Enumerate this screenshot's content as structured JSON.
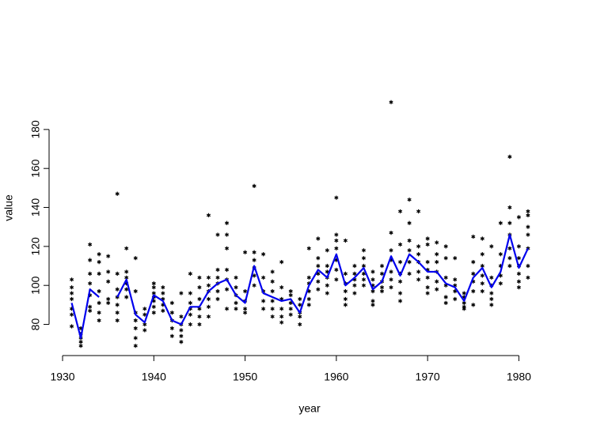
{
  "chart_data": {
    "type": "scatter",
    "x_label": "year",
    "y_label": "value",
    "xlim": [
      1929,
      1983
    ],
    "ylim": [
      64,
      199
    ],
    "xticks": [
      1930,
      1940,
      1950,
      1960,
      1970,
      1980
    ],
    "yticks": [
      80,
      100,
      120,
      140,
      160,
      180
    ],
    "point_color": "#000000",
    "points": [
      {
        "x": 1931,
        "values": [
          103,
          99,
          96,
          93,
          88,
          85,
          79
        ]
      },
      {
        "x": 1932,
        "values": [
          78,
          75,
          73,
          71,
          69
        ]
      },
      {
        "x": 1933,
        "values": [
          121,
          113,
          106,
          101,
          95,
          89,
          87
        ]
      },
      {
        "x": 1934,
        "values": [
          116,
          112,
          106,
          97,
          91,
          86,
          82
        ]
      },
      {
        "x": 1935,
        "values": [
          115,
          107,
          102,
          93,
          91
        ]
      },
      {
        "x": 1936,
        "values": [
          147,
          106,
          98,
          94,
          90,
          86,
          82
        ]
      },
      {
        "x": 1937,
        "values": [
          119,
          107,
          104,
          101,
          98,
          94
        ]
      },
      {
        "x": 1938,
        "values": [
          114,
          97,
          86,
          82,
          78,
          73,
          69
        ]
      },
      {
        "x": 1939,
        "values": [
          88,
          85,
          80,
          77
        ]
      },
      {
        "x": 1940,
        "values": [
          101,
          99,
          96,
          94,
          92,
          89,
          86
        ]
      },
      {
        "x": 1941,
        "values": [
          99,
          96,
          93,
          90,
          87
        ]
      },
      {
        "x": 1942,
        "values": [
          91,
          86,
          82,
          78,
          74
        ]
      },
      {
        "x": 1943,
        "values": [
          96,
          84,
          80,
          77,
          74,
          71
        ]
      },
      {
        "x": 1944,
        "values": [
          106,
          96,
          91,
          88,
          85,
          80
        ]
      },
      {
        "x": 1945,
        "values": [
          104,
          99,
          93,
          88,
          84,
          80
        ]
      },
      {
        "x": 1946,
        "values": [
          136,
          104,
          100,
          97,
          93,
          89,
          84
        ]
      },
      {
        "x": 1947,
        "values": [
          126,
          108,
          104,
          101,
          97,
          93
        ]
      },
      {
        "x": 1948,
        "values": [
          132,
          126,
          119,
          108,
          103,
          98,
          88
        ]
      },
      {
        "x": 1949,
        "values": [
          104,
          99,
          95,
          91,
          88
        ]
      },
      {
        "x": 1950,
        "values": [
          117,
          97,
          92,
          88,
          86
        ]
      },
      {
        "x": 1951,
        "values": [
          151,
          117,
          113,
          109,
          105,
          100
        ]
      },
      {
        "x": 1952,
        "values": [
          116,
          104,
          97,
          92,
          88
        ]
      },
      {
        "x": 1953,
        "values": [
          107,
          102,
          97,
          92,
          88,
          84
        ]
      },
      {
        "x": 1954,
        "values": [
          112,
          99,
          93,
          88,
          84,
          81
        ]
      },
      {
        "x": 1955,
        "values": [
          97,
          95,
          91,
          88,
          85
        ]
      },
      {
        "x": 1956,
        "values": [
          93,
          90,
          86,
          84,
          80
        ]
      },
      {
        "x": 1957,
        "values": [
          119,
          104,
          101,
          97,
          93,
          90
        ]
      },
      {
        "x": 1958,
        "values": [
          124,
          114,
          110,
          106,
          102,
          98
        ]
      },
      {
        "x": 1959,
        "values": [
          118,
          110,
          107,
          104,
          100,
          96
        ]
      },
      {
        "x": 1960,
        "values": [
          145,
          126,
          123,
          119,
          113,
          108,
          103
        ]
      },
      {
        "x": 1961,
        "values": [
          123,
          106,
          101,
          97,
          93,
          90
        ]
      },
      {
        "x": 1962,
        "values": [
          110,
          106,
          103,
          100,
          96
        ]
      },
      {
        "x": 1963,
        "values": [
          118,
          114,
          110,
          106,
          103,
          100
        ]
      },
      {
        "x": 1964,
        "values": [
          107,
          103,
          100,
          97,
          92,
          90
        ]
      },
      {
        "x": 1965,
        "values": [
          110,
          106,
          102,
          99,
          97
        ]
      },
      {
        "x": 1966,
        "values": [
          194,
          127,
          118,
          113,
          107,
          103,
          99
        ]
      },
      {
        "x": 1967,
        "values": [
          138,
          121,
          112,
          106,
          102,
          96,
          92
        ]
      },
      {
        "x": 1968,
        "values": [
          144,
          132,
          123,
          118,
          112,
          106
        ]
      },
      {
        "x": 1969,
        "values": [
          138,
          120,
          116,
          112,
          107,
          103
        ]
      },
      {
        "x": 1970,
        "values": [
          124,
          121,
          112,
          108,
          104,
          99,
          96
        ]
      },
      {
        "x": 1971,
        "values": [
          122,
          116,
          112,
          107,
          102,
          98
        ]
      },
      {
        "x": 1972,
        "values": [
          120,
          114,
          104,
          100,
          94,
          91
        ]
      },
      {
        "x": 1973,
        "values": [
          114,
          103,
          100,
          97,
          93
        ]
      },
      {
        "x": 1974,
        "values": [
          96,
          94,
          91,
          89,
          88
        ]
      },
      {
        "x": 1975,
        "values": [
          125,
          112,
          106,
          102,
          97,
          90
        ]
      },
      {
        "x": 1976,
        "values": [
          124,
          116,
          110,
          105,
          101,
          97
        ]
      },
      {
        "x": 1977,
        "values": [
          120,
          104,
          100,
          96,
          93,
          90
        ]
      },
      {
        "x": 1978,
        "values": [
          132,
          116,
          110,
          105,
          101
        ]
      },
      {
        "x": 1979,
        "values": [
          166,
          140,
          132,
          126,
          119,
          114,
          110
        ]
      },
      {
        "x": 1980,
        "values": [
          135,
          120,
          114,
          110,
          106,
          102,
          99
        ]
      },
      {
        "x": 1981,
        "values": [
          138,
          136,
          130,
          126,
          119,
          110,
          104
        ]
      }
    ],
    "line": {
      "color": "#0000ee",
      "x": [
        1931,
        1932,
        1933,
        1934,
        1935,
        1936,
        1937,
        1938,
        1939,
        1940,
        1941,
        1942,
        1943,
        1944,
        1945,
        1946,
        1947,
        1948,
        1949,
        1950,
        1951,
        1952,
        1953,
        1954,
        1955,
        1956,
        1957,
        1958,
        1959,
        1960,
        1961,
        1962,
        1963,
        1964,
        1965,
        1966,
        1967,
        1968,
        1969,
        1970,
        1971,
        1972,
        1973,
        1974,
        1975,
        1976,
        1977,
        1978,
        1979,
        1980,
        1981
      ],
      "values": [
        91,
        73,
        98,
        94,
        null,
        94,
        103,
        85,
        81,
        95,
        92,
        82,
        80,
        89,
        89,
        97,
        101,
        103,
        95,
        91,
        110,
        96,
        94,
        92,
        93,
        86,
        100,
        108,
        104,
        116,
        100,
        104,
        109,
        98,
        102,
        115,
        105,
        116,
        112,
        107,
        107,
        101,
        99,
        92,
        104,
        109,
        99,
        107,
        126,
        109,
        119
      ]
    }
  }
}
